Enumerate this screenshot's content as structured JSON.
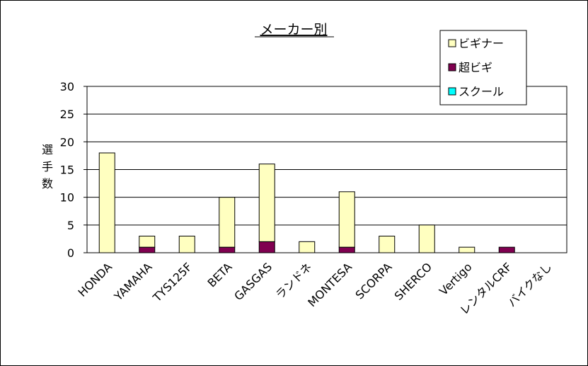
{
  "chart_data": {
    "type": "stacked_bar",
    "title": "メーカー別",
    "y_label": "選手数",
    "categories": [
      "HONDA",
      "YAMAHA",
      "TYS125F",
      "BETA",
      "GASGAS",
      "ランドネ",
      "MONTESA",
      "SCORPA",
      "SHERCO",
      "Vertigo",
      "レンタルCRF",
      "バイクなし"
    ],
    "series": [
      {
        "name": "ビギナー",
        "color": "#ffffc0",
        "values": [
          18,
          2,
          3,
          9,
          14,
          2,
          10,
          3,
          5,
          1,
          0,
          0
        ]
      },
      {
        "name": "超ビギ",
        "color": "#800050",
        "values": [
          0,
          1,
          0,
          1,
          2,
          0,
          1,
          0,
          0,
          0,
          1,
          0
        ]
      },
      {
        "name": "スクール",
        "color": "#00ffff",
        "values": [
          0,
          0,
          0,
          0,
          0,
          0,
          0,
          0,
          0,
          0,
          0,
          0
        ]
      }
    ],
    "ylim": [
      0,
      30
    ],
    "yticks": [
      0,
      5,
      10,
      15,
      20,
      25,
      30
    ],
    "grid": true,
    "legend": "top-right"
  }
}
